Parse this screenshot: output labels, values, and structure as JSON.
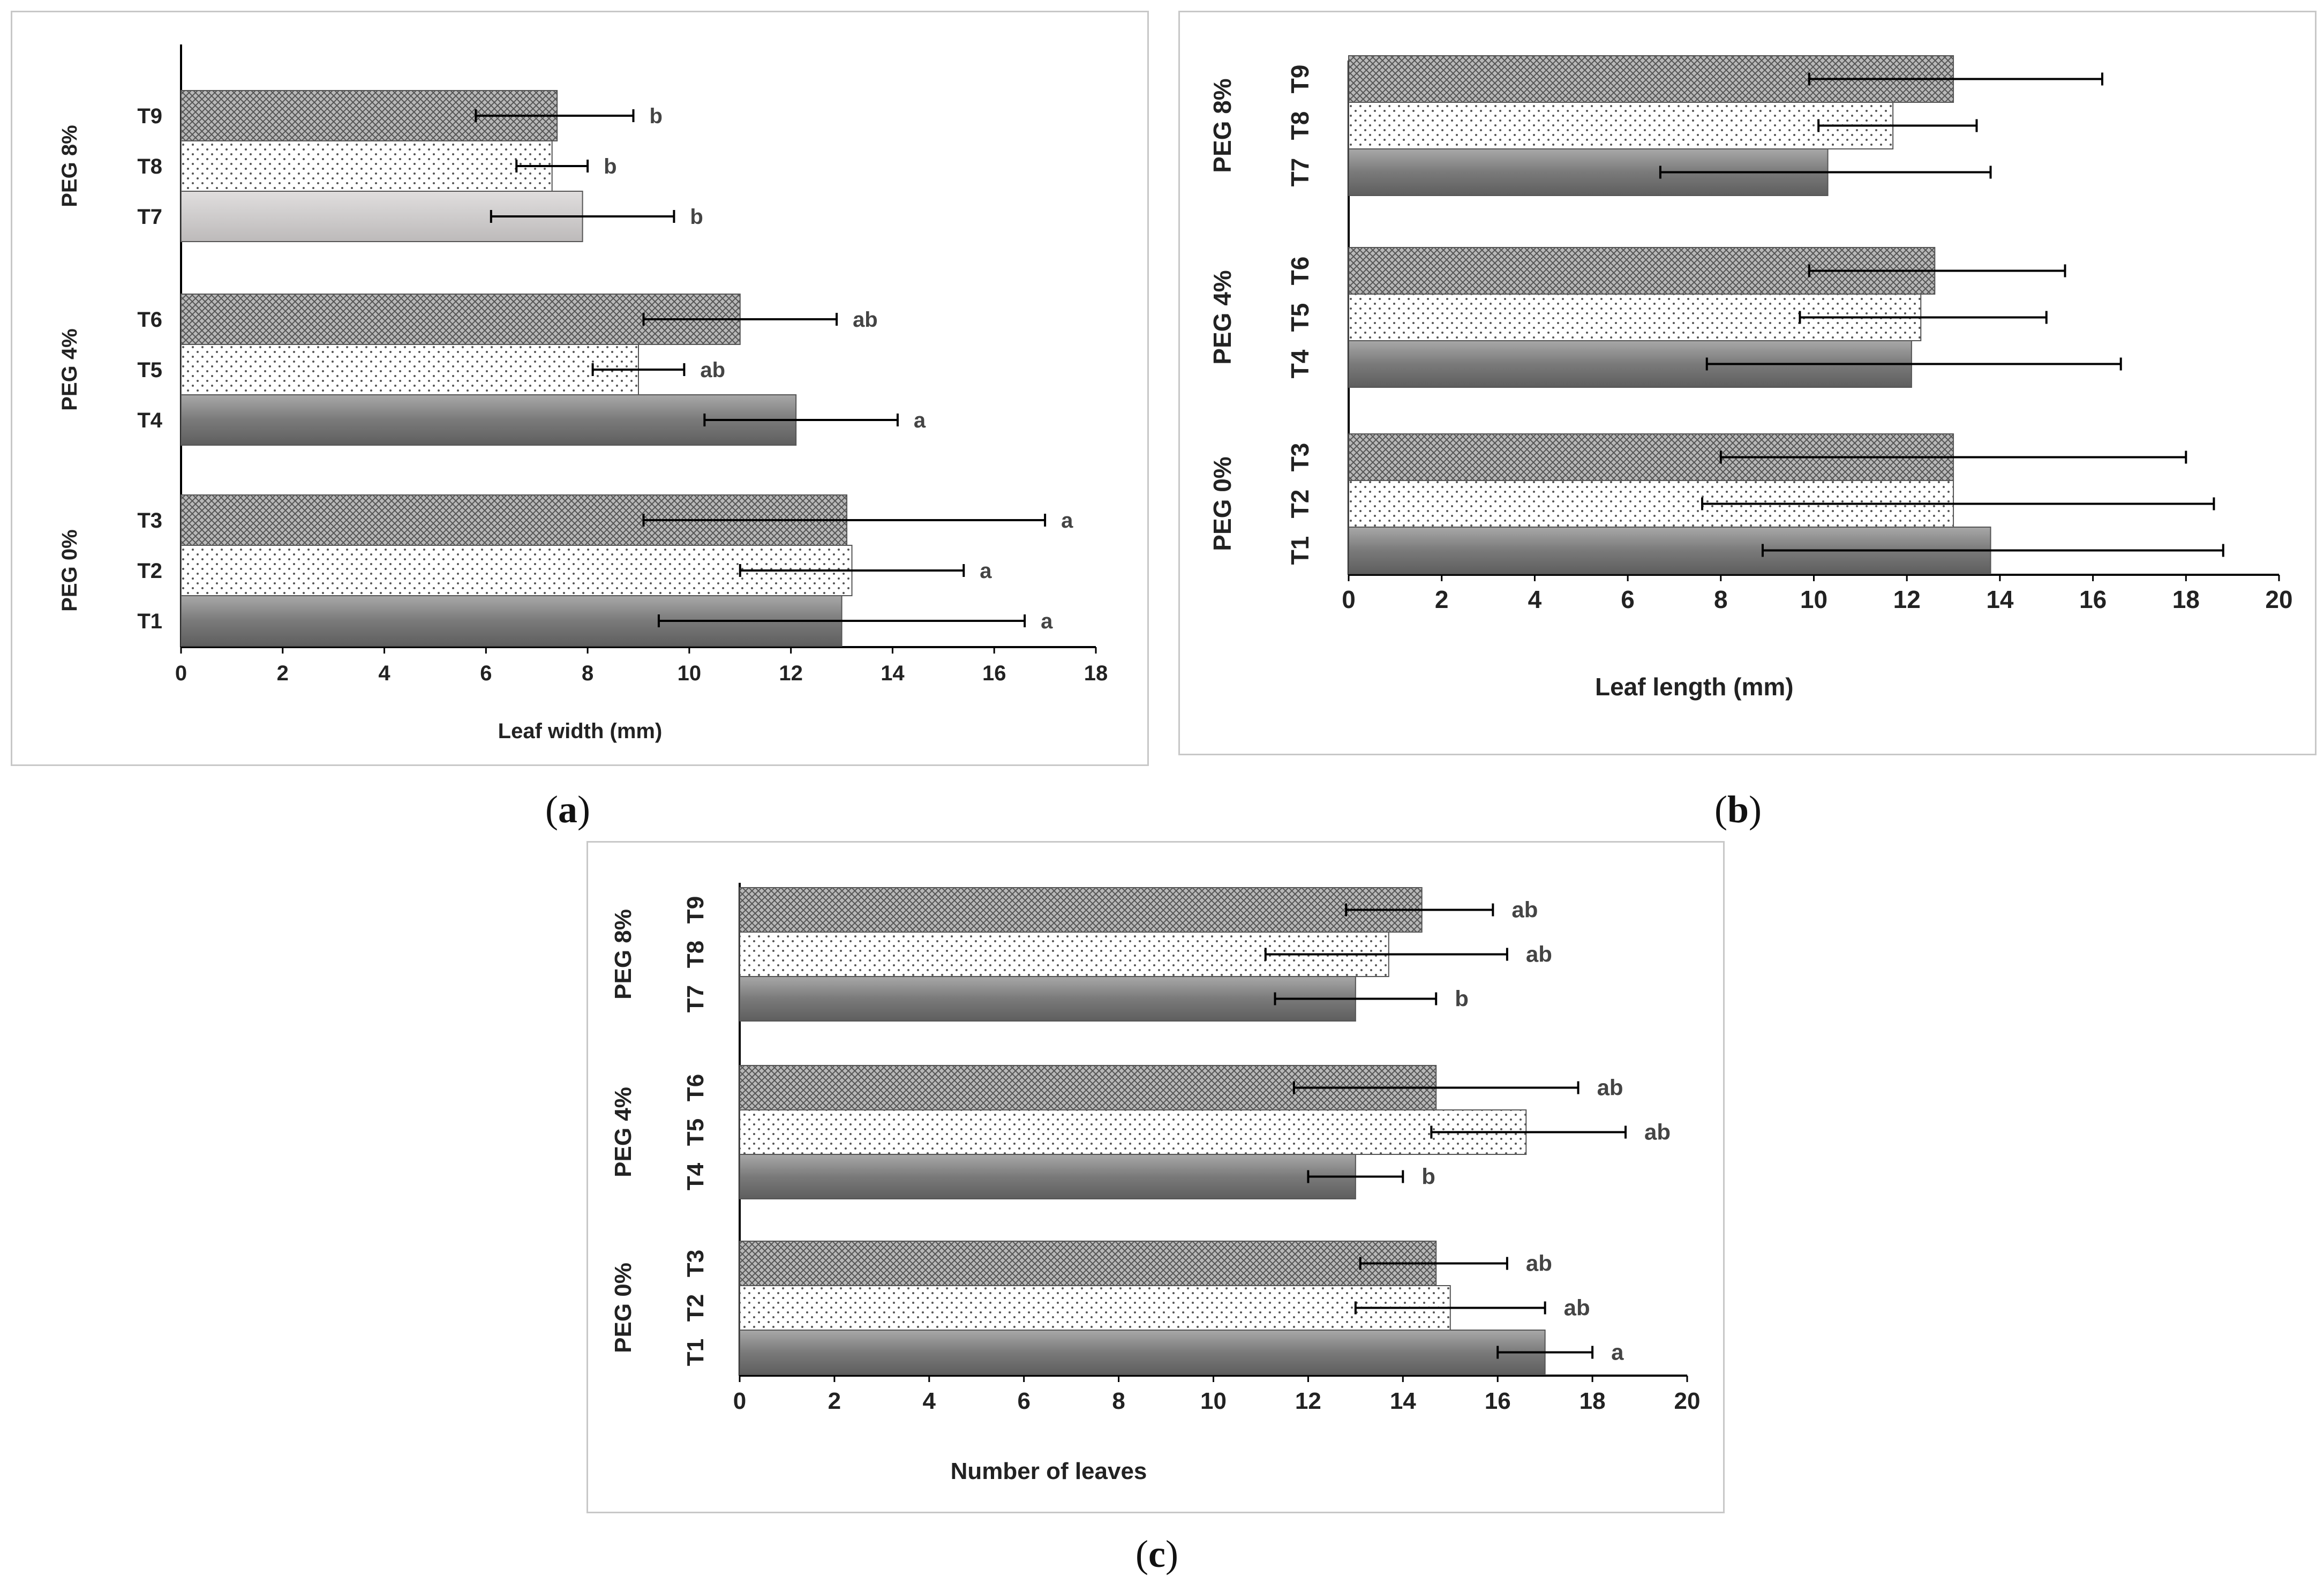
{
  "figure": {
    "panel_label_a": "a",
    "panel_label_b": "b",
    "panel_label_c": "c"
  },
  "colors": {
    "solid": "#7a7a7a",
    "solid_light": "#bdbaba",
    "cross": "#9a9a9a",
    "dots": "#ffffff",
    "axis": "#000000",
    "label": "#222222",
    "letter": "#444444"
  },
  "chart_data": [
    {
      "panel": "a",
      "type": "bar",
      "orientation": "horizontal",
      "xlabel": "Leaf width (mm)",
      "xlim": [
        0,
        18
      ],
      "xticks": [
        "0",
        "2",
        "4",
        "6",
        "8",
        "10",
        "12",
        "14",
        "16",
        "18"
      ],
      "groups": [
        {
          "label": "PEG 0%",
          "items": [
            {
              "name": "T1",
              "value": 13.0,
              "err_low": 9.4,
              "err_high": 16.6,
              "letter": "a",
              "pattern": "solid"
            },
            {
              "name": "T2",
              "value": 13.2,
              "err_low": 11.0,
              "err_high": 15.4,
              "letter": "a",
              "pattern": "dots"
            },
            {
              "name": "T3",
              "value": 13.1,
              "err_low": 9.1,
              "err_high": 17.0,
              "letter": "a",
              "pattern": "cross"
            }
          ]
        },
        {
          "label": "PEG 4%",
          "items": [
            {
              "name": "T4",
              "value": 12.1,
              "err_low": 10.3,
              "err_high": 14.1,
              "letter": "a",
              "pattern": "solid"
            },
            {
              "name": "T5",
              "value": 9.0,
              "err_low": 8.1,
              "err_high": 9.9,
              "letter": "ab",
              "pattern": "dots"
            },
            {
              "name": "T6",
              "value": 11.0,
              "err_low": 9.1,
              "err_high": 12.9,
              "letter": "ab",
              "pattern": "cross"
            }
          ]
        },
        {
          "label": "PEG 8%",
          "items": [
            {
              "name": "T7",
              "value": 7.9,
              "err_low": 6.1,
              "err_high": 9.7,
              "letter": "b",
              "pattern": "solid_light"
            },
            {
              "name": "T8",
              "value": 7.3,
              "err_low": 6.6,
              "err_high": 8.0,
              "letter": "b",
              "pattern": "dots"
            },
            {
              "name": "T9",
              "value": 7.4,
              "err_low": 5.8,
              "err_high": 8.9,
              "letter": "b",
              "pattern": "cross"
            }
          ]
        }
      ]
    },
    {
      "panel": "b",
      "type": "bar",
      "orientation": "horizontal",
      "xlabel": "Leaf length (mm)",
      "xlim": [
        0,
        20
      ],
      "xticks": [
        "0",
        "2",
        "4",
        "6",
        "8",
        "10",
        "12",
        "14",
        "16",
        "18",
        "20"
      ],
      "groups": [
        {
          "label": "PEG 0%",
          "items": [
            {
              "name": "T1",
              "value": 13.8,
              "err_low": 8.9,
              "err_high": 18.8
            },
            {
              "name": "T2",
              "value": 13.0,
              "err_low": 7.6,
              "err_high": 18.6
            },
            {
              "name": "T3",
              "value": 13.0,
              "err_low": 8.0,
              "err_high": 18.0
            }
          ]
        },
        {
          "label": "PEG 4%",
          "items": [
            {
              "name": "T4",
              "value": 12.1,
              "err_low": 7.7,
              "err_high": 16.6
            },
            {
              "name": "T5",
              "value": 12.3,
              "err_low": 9.7,
              "err_high": 15.0
            },
            {
              "name": "T6",
              "value": 12.6,
              "err_low": 9.9,
              "err_high": 15.4
            }
          ]
        },
        {
          "label": "PEG 8%",
          "items": [
            {
              "name": "T7",
              "value": 10.3,
              "err_low": 6.7,
              "err_high": 13.8
            },
            {
              "name": "T8",
              "value": 11.7,
              "err_low": 10.1,
              "err_high": 13.5
            },
            {
              "name": "T9",
              "value": 13.0,
              "err_low": 9.9,
              "err_high": 16.2
            }
          ]
        }
      ]
    },
    {
      "panel": "c",
      "type": "bar",
      "orientation": "horizontal",
      "xlabel": "Number of leaves",
      "xlim": [
        0,
        20
      ],
      "xticks": [
        "0",
        "2",
        "4",
        "6",
        "8",
        "10",
        "12",
        "14",
        "16",
        "18",
        "20"
      ],
      "groups": [
        {
          "label": "PEG 0%",
          "items": [
            {
              "name": "T1",
              "value": 17.0,
              "err_low": 16.0,
              "err_high": 18.0,
              "letter": "a"
            },
            {
              "name": "T2",
              "value": 15.0,
              "err_low": 13.0,
              "err_high": 17.0,
              "letter": "ab"
            },
            {
              "name": "T3",
              "value": 14.7,
              "err_low": 13.1,
              "err_high": 16.2,
              "letter": "ab"
            }
          ]
        },
        {
          "label": "PEG 4%",
          "items": [
            {
              "name": "T4",
              "value": 13.0,
              "err_low": 12.0,
              "err_high": 14.0,
              "letter": "b"
            },
            {
              "name": "T5",
              "value": 16.6,
              "err_low": 14.6,
              "err_high": 18.7,
              "letter": "ab"
            },
            {
              "name": "T6",
              "value": 14.7,
              "err_low": 11.7,
              "err_high": 17.7,
              "letter": "ab"
            }
          ]
        },
        {
          "label": "PEG 8%",
          "items": [
            {
              "name": "T7",
              "value": 13.0,
              "err_low": 11.3,
              "err_high": 14.7,
              "letter": "b"
            },
            {
              "name": "T8",
              "value": 13.7,
              "err_low": 11.1,
              "err_high": 16.2,
              "letter": "ab"
            },
            {
              "name": "T9",
              "value": 14.4,
              "err_low": 12.8,
              "err_high": 15.9,
              "letter": "ab"
            }
          ]
        }
      ]
    }
  ]
}
